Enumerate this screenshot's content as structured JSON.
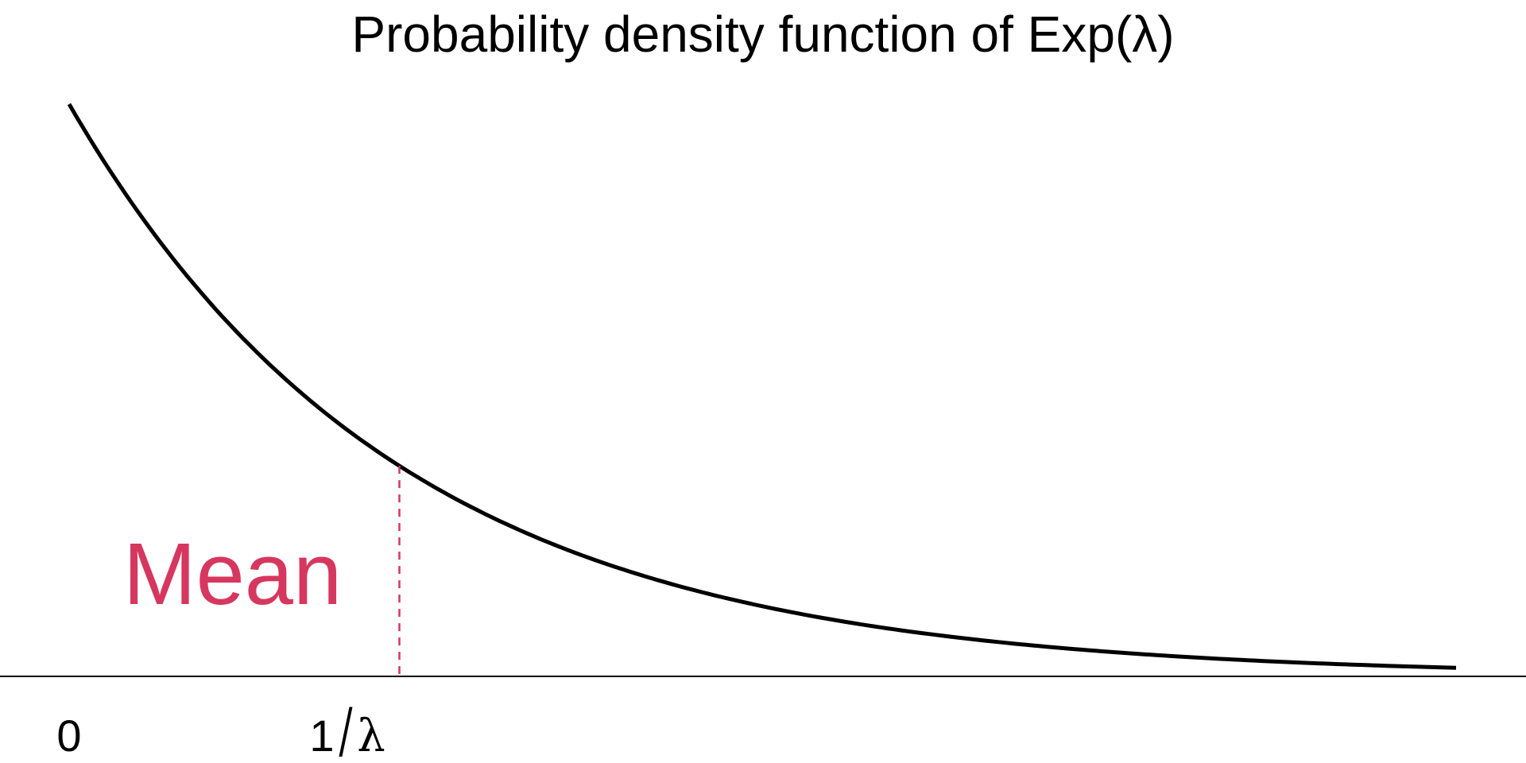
{
  "chart_data": {
    "type": "line",
    "title": "Probability density function of Exp(λ)",
    "xlabel": "",
    "ylabel": "",
    "xlim": [
      0,
      4.2
    ],
    "ylim": [
      0,
      1.02
    ],
    "grid": false,
    "series": [
      {
        "x": [
          0,
          0.1,
          0.2,
          0.3,
          0.4,
          0.5,
          0.6,
          0.7,
          0.8,
          0.9,
          1.0,
          1.2,
          1.4,
          1.6,
          1.8,
          2.0,
          2.2,
          2.4,
          2.6,
          2.8,
          3.0,
          3.2,
          3.4,
          3.6,
          3.8,
          4.0
        ],
        "y": [
          1.0,
          0.905,
          0.819,
          0.741,
          0.67,
          0.607,
          0.549,
          0.497,
          0.449,
          0.407,
          0.368,
          0.301,
          0.247,
          0.202,
          0.165,
          0.135,
          0.111,
          0.091,
          0.074,
          0.061,
          0.05,
          0.041,
          0.033,
          0.027,
          0.022,
          0.018
        ]
      }
    ],
    "mean_marker": {
      "x": 1.0,
      "label": "Mean",
      "color": "#d6375f"
    },
    "x_tick_labels": [
      {
        "x": 0,
        "label": "0"
      },
      {
        "x": 1,
        "label": "1",
        "slash": "/",
        "symbol": "λ"
      }
    ],
    "curve_color": "#000000",
    "axis_color": "#000000"
  }
}
